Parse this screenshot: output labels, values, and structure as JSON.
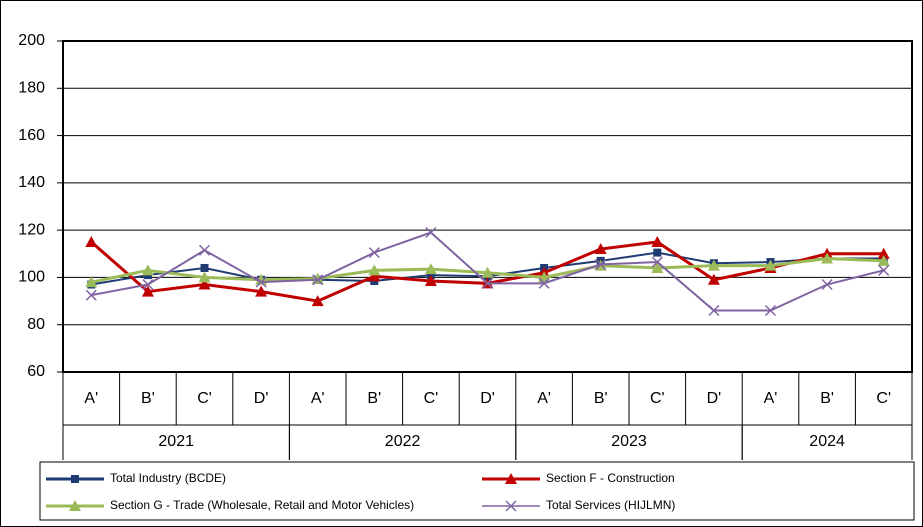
{
  "chart_data": {
    "type": "line",
    "categories": [
      "A'",
      "B'",
      "C'",
      "D'",
      "A'",
      "B'",
      "C'",
      "D'",
      "A'",
      "B'",
      "C'",
      "D'",
      "A'",
      "B'",
      "C'"
    ],
    "groups": [
      {
        "label": "2021",
        "size": 4
      },
      {
        "label": "2022",
        "size": 4
      },
      {
        "label": "2023",
        "size": 4
      },
      {
        "label": "2024",
        "size": 3
      }
    ],
    "series": [
      {
        "name": "Total Industry (BCDE)",
        "color": "#1f3b73",
        "marker": "square",
        "values": [
          97,
          101,
          104,
          99,
          99,
          98.5,
          101,
          100.5,
          104,
          107,
          110.5,
          106,
          106.5,
          108,
          108
        ]
      },
      {
        "name": "Section F - Construction",
        "color": "#c00000",
        "marker": "triangle",
        "values": [
          115,
          94,
          97,
          94,
          90,
          100.5,
          98.5,
          97.5,
          102,
          112,
          115,
          99,
          104,
          110,
          110
        ]
      },
      {
        "name": "Section G - Trade (Wholesale, Retail and Motor Vehicles)",
        "color": "#9bbb59",
        "marker": "triangle",
        "values": [
          98,
          103,
          100,
          99,
          99.5,
          103,
          103.5,
          102,
          100,
          105,
          104,
          105,
          105,
          108,
          107
        ]
      },
      {
        "name": "Total Services (HIJLMN)",
        "color": "#8064a2",
        "marker": "x",
        "values": [
          92.5,
          97,
          111.5,
          98,
          99,
          110.5,
          119,
          97.5,
          97.5,
          105.5,
          106.5,
          86,
          86,
          97,
          103
        ]
      }
    ],
    "ylim": [
      60,
      200
    ],
    "yticks": [
      60,
      80,
      100,
      120,
      140,
      160,
      180,
      200
    ],
    "grid": true
  }
}
